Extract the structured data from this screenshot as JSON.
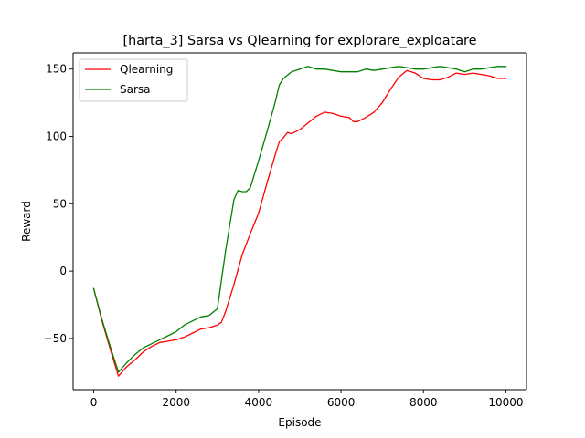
{
  "chart_data": {
    "type": "line",
    "title": "[harta_3] Sarsa vs Qlearning for explorare_exploatare",
    "xlabel": "Episode",
    "ylabel": "Reward",
    "xlim": [
      -500,
      10500
    ],
    "ylim": [
      -88,
      162
    ],
    "xticks": [
      0,
      2000,
      4000,
      6000,
      8000,
      10000
    ],
    "xtick_labels": [
      "0",
      "2000",
      "4000",
      "6000",
      "8000",
      "10000"
    ],
    "yticks": [
      -50,
      0,
      50,
      100,
      150
    ],
    "ytick_labels": [
      "−50",
      "0",
      "50",
      "100",
      "150"
    ],
    "grid": false,
    "legend": {
      "position": "top-left"
    },
    "series": [
      {
        "name": "Qlearning",
        "color": "#ff0000",
        "x": [
          0,
          200,
          400,
          600,
          800,
          1000,
          1200,
          1400,
          1600,
          1800,
          2000,
          2200,
          2400,
          2600,
          2800,
          3000,
          3100,
          3200,
          3400,
          3600,
          3800,
          4000,
          4200,
          4400,
          4500,
          4600,
          4700,
          4800,
          5000,
          5200,
          5400,
          5600,
          5800,
          6000,
          6200,
          6300,
          6400,
          6600,
          6800,
          7000,
          7200,
          7400,
          7600,
          7800,
          8000,
          8200,
          8400,
          8600,
          8800,
          9000,
          9200,
          9400,
          9600,
          9800,
          10000
        ],
        "y": [
          -13,
          -37,
          -58,
          -78,
          -71,
          -66,
          -60,
          -56,
          -53,
          -52,
          -51,
          -49,
          -46,
          -43,
          -42,
          -40,
          -38,
          -30,
          -10,
          12,
          28,
          43,
          65,
          86,
          96,
          99,
          103,
          102,
          105,
          110,
          115,
          118,
          117,
          115,
          114,
          111,
          111,
          114,
          118,
          125,
          135,
          144,
          149,
          147,
          143,
          142,
          142,
          144,
          147,
          146,
          147,
          146,
          145,
          143,
          143
        ]
      },
      {
        "name": "Sarsa",
        "color": "#008000",
        "x": [
          0,
          200,
          400,
          600,
          800,
          1000,
          1200,
          1400,
          1600,
          1800,
          2000,
          2200,
          2400,
          2600,
          2800,
          3000,
          3200,
          3400,
          3500,
          3600,
          3700,
          3800,
          4000,
          4200,
          4400,
          4500,
          4600,
          4800,
          5000,
          5200,
          5400,
          5600,
          5800,
          6000,
          6200,
          6400,
          6600,
          6800,
          7000,
          7200,
          7400,
          7600,
          7800,
          8000,
          8200,
          8400,
          8600,
          8800,
          9000,
          9200,
          9400,
          9600,
          9800,
          10000
        ],
        "y": [
          -13,
          -36,
          -56,
          -75,
          -68,
          -62,
          -57,
          -54,
          -51,
          -48,
          -45,
          -40,
          -37,
          -34,
          -33,
          -28,
          15,
          53,
          60,
          59,
          59,
          62,
          82,
          103,
          125,
          138,
          143,
          148,
          150,
          152,
          150,
          150,
          149,
          148,
          148,
          148,
          150,
          149,
          150,
          151,
          152,
          151,
          150,
          150,
          151,
          152,
          151,
          150,
          148,
          150,
          150,
          151,
          152,
          152
        ]
      }
    ]
  }
}
